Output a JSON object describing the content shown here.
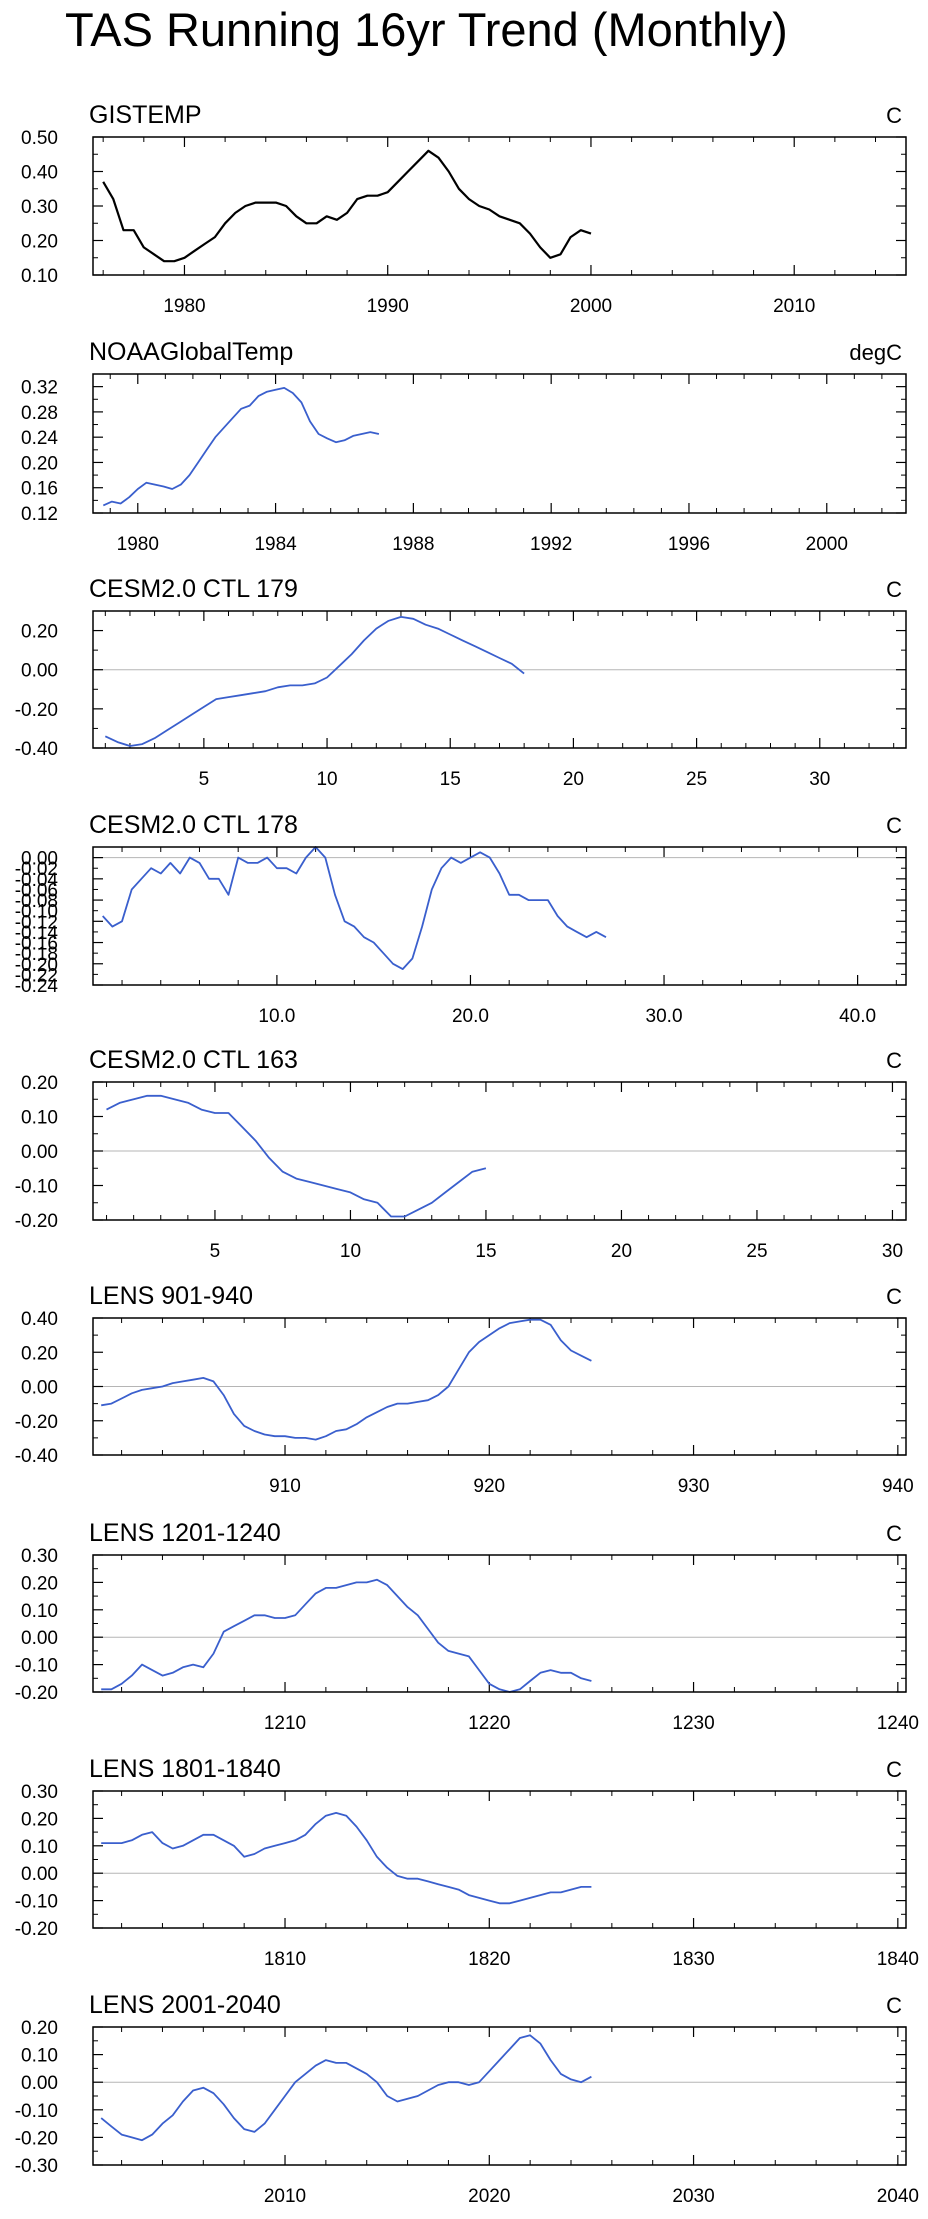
{
  "title": "TAS Running 16yr Trend (Monthly)",
  "chart_data": [
    {
      "type": "line",
      "title": "GISTEMP",
      "units": "C",
      "color": "#000000",
      "xlim": [
        1975.5,
        2015.5
      ],
      "xticks": [
        1980,
        1990,
        2000,
        2010
      ],
      "xtick_labels": [
        "1980",
        "1990",
        "2000",
        "2010"
      ],
      "ylim": [
        0.1,
        0.5
      ],
      "yticks": [
        0.1,
        0.2,
        0.3,
        0.4,
        0.5
      ],
      "ytick_labels": [
        "0.10",
        "0.20",
        "0.30",
        "0.40",
        "0.50"
      ],
      "zero_line": false,
      "x": [
        1976.0,
        1976.5,
        1977.0,
        1977.5,
        1978.0,
        1978.5,
        1979.0,
        1979.5,
        1980.0,
        1980.5,
        1981.0,
        1981.5,
        1982.0,
        1982.5,
        1983.0,
        1983.5,
        1984.0,
        1984.5,
        1985.0,
        1985.5,
        1986.0,
        1986.5,
        1987.0,
        1987.5,
        1988.0,
        1988.5,
        1989.0,
        1989.5,
        1990.0,
        1990.5,
        1991.0,
        1991.5,
        1992.0,
        1992.5,
        1993.0,
        1993.5,
        1994.0,
        1994.5,
        1995.0,
        1995.5,
        1996.0,
        1996.5,
        1997.0,
        1997.5,
        1998.0,
        1998.5,
        1999.0,
        1999.5,
        2000.0
      ],
      "values": [
        0.37,
        0.32,
        0.23,
        0.23,
        0.18,
        0.16,
        0.14,
        0.14,
        0.15,
        0.17,
        0.19,
        0.21,
        0.25,
        0.28,
        0.3,
        0.31,
        0.31,
        0.31,
        0.3,
        0.27,
        0.25,
        0.25,
        0.27,
        0.26,
        0.28,
        0.32,
        0.33,
        0.33,
        0.34,
        0.37,
        0.4,
        0.43,
        0.46,
        0.44,
        0.4,
        0.35,
        0.32,
        0.3,
        0.29,
        0.27,
        0.26,
        0.25,
        0.22,
        0.18,
        0.15,
        0.16,
        0.21,
        0.23,
        0.22
      ]
    },
    {
      "type": "line",
      "title": "NOAAGlobalTemp",
      "units": "degC",
      "color": "#3a5fcd",
      "xlim": [
        1978.7,
        2002.3
      ],
      "xticks": [
        1980,
        1984,
        1988,
        1992,
        1996,
        2000
      ],
      "xtick_labels": [
        "1980",
        "1984",
        "1988",
        "1992",
        "1996",
        "2000"
      ],
      "ylim": [
        0.12,
        0.34
      ],
      "yticks": [
        0.12,
        0.16,
        0.2,
        0.24,
        0.28,
        0.32
      ],
      "ytick_labels": [
        "0.12",
        "0.16",
        "0.20",
        "0.24",
        "0.28",
        "0.32"
      ],
      "zero_line": false,
      "x": [
        1979.0,
        1979.25,
        1979.5,
        1979.75,
        1980.0,
        1980.25,
        1980.5,
        1980.75,
        1981.0,
        1981.25,
        1981.5,
        1981.75,
        1982.0,
        1982.25,
        1982.5,
        1982.75,
        1983.0,
        1983.25,
        1983.5,
        1983.75,
        1984.0,
        1984.25,
        1984.5,
        1984.75,
        1985.0,
        1985.25,
        1985.5,
        1985.75,
        1986.0,
        1986.25,
        1986.5,
        1986.75,
        1987.0
      ],
      "values": [
        0.132,
        0.138,
        0.135,
        0.145,
        0.158,
        0.168,
        0.165,
        0.162,
        0.158,
        0.165,
        0.18,
        0.2,
        0.22,
        0.24,
        0.255,
        0.27,
        0.285,
        0.29,
        0.305,
        0.312,
        0.315,
        0.318,
        0.31,
        0.295,
        0.265,
        0.245,
        0.238,
        0.232,
        0.235,
        0.242,
        0.245,
        0.248,
        0.245
      ]
    },
    {
      "type": "line",
      "title": "CESM2.0 CTL 179",
      "units": "C",
      "color": "#3a5fcd",
      "xlim": [
        0.5,
        33.5
      ],
      "xticks": [
        5,
        10,
        15,
        20,
        25,
        30
      ],
      "xtick_labels": [
        "5",
        "10",
        "15",
        "20",
        "25",
        "30"
      ],
      "ylim": [
        -0.4,
        0.3
      ],
      "yticks": [
        -0.4,
        -0.2,
        0.0,
        0.2
      ],
      "ytick_labels": [
        "-0.40",
        "-0.20",
        "0.00",
        "0.20"
      ],
      "zero_line": true,
      "x": [
        1.0,
        1.5,
        2.0,
        2.5,
        3.0,
        3.5,
        4.0,
        4.5,
        5.0,
        5.5,
        6.0,
        6.5,
        7.0,
        7.5,
        8.0,
        8.5,
        9.0,
        9.5,
        10.0,
        10.5,
        11.0,
        11.5,
        12.0,
        12.5,
        13.0,
        13.5,
        14.0,
        14.5,
        15.0,
        15.5,
        16.0,
        16.5,
        17.0,
        17.5,
        18.0
      ],
      "values": [
        -0.34,
        -0.37,
        -0.39,
        -0.38,
        -0.35,
        -0.31,
        -0.27,
        -0.23,
        -0.19,
        -0.15,
        -0.14,
        -0.13,
        -0.12,
        -0.11,
        -0.09,
        -0.08,
        -0.08,
        -0.07,
        -0.04,
        0.02,
        0.08,
        0.15,
        0.21,
        0.25,
        0.27,
        0.26,
        0.23,
        0.21,
        0.18,
        0.15,
        0.12,
        0.09,
        0.06,
        0.03,
        -0.02
      ]
    },
    {
      "type": "line",
      "title": "CESM2.0 CTL 178",
      "units": "C",
      "color": "#3a5fcd",
      "xlim": [
        0.5,
        42.5
      ],
      "xticks": [
        10,
        20,
        30,
        40
      ],
      "xtick_labels": [
        "10.0",
        "20.0",
        "30.0",
        "40.0"
      ],
      "ylim": [
        -0.24,
        0.02
      ],
      "yticks": [
        -0.24,
        -0.2,
        -0.16,
        -0.12,
        -0.08,
        -0.04,
        0.0
      ],
      "ytick_labels": [
        "-0.24",
        "-0.20",
        "-0.16",
        "-0.12",
        "-0.08",
        "-0.04",
        "0.00"
      ],
      "minor_yticks": [
        -0.22,
        -0.18,
        -0.14,
        -0.1,
        -0.06,
        -0.02
      ],
      "minor_ytick_labels": [
        "-0.22",
        "-0.18",
        "-0.14",
        "-0.10",
        "-0.06",
        "-0.02"
      ],
      "zero_line": true,
      "x": [
        1.0,
        1.5,
        2.0,
        2.5,
        3.0,
        3.5,
        4.0,
        4.5,
        5.0,
        5.5,
        6.0,
        6.5,
        7.0,
        7.5,
        8.0,
        8.5,
        9.0,
        9.5,
        10.0,
        10.5,
        11.0,
        11.5,
        12.0,
        12.5,
        13.0,
        13.5,
        14.0,
        14.5,
        15.0,
        15.5,
        16.0,
        16.5,
        17.0,
        17.5,
        18.0,
        18.5,
        19.0,
        19.5,
        20.0,
        20.5,
        21.0,
        21.5,
        22.0,
        22.5,
        23.0,
        23.5,
        24.0,
        24.5,
        25.0,
        25.5,
        26.0,
        26.5,
        27.0
      ],
      "values": [
        -0.11,
        -0.13,
        -0.12,
        -0.06,
        -0.04,
        -0.02,
        -0.03,
        -0.01,
        -0.03,
        0.0,
        -0.01,
        -0.04,
        -0.04,
        -0.07,
        0.0,
        -0.01,
        -0.01,
        0.0,
        -0.02,
        -0.02,
        -0.03,
        0.0,
        0.02,
        0.0,
        -0.07,
        -0.12,
        -0.13,
        -0.15,
        -0.16,
        -0.18,
        -0.2,
        -0.21,
        -0.19,
        -0.13,
        -0.06,
        -0.02,
        0.0,
        -0.01,
        0.0,
        0.01,
        0.0,
        -0.03,
        -0.07,
        -0.07,
        -0.08,
        -0.08,
        -0.08,
        -0.11,
        -0.13,
        -0.14,
        -0.15,
        -0.14,
        -0.15
      ]
    },
    {
      "type": "line",
      "title": "CESM2.0 CTL 163",
      "units": "C",
      "color": "#3a5fcd",
      "xlim": [
        0.5,
        30.5
      ],
      "xticks": [
        5,
        10,
        15,
        20,
        25,
        30
      ],
      "xtick_labels": [
        "5",
        "10",
        "15",
        "20",
        "25",
        "30"
      ],
      "ylim": [
        -0.2,
        0.2
      ],
      "yticks": [
        -0.2,
        -0.1,
        0.0,
        0.1,
        0.2
      ],
      "ytick_labels": [
        "-0.20",
        "-0.10",
        "0.00",
        "0.10",
        "0.20"
      ],
      "zero_line": true,
      "x": [
        1.0,
        1.5,
        2.0,
        2.5,
        3.0,
        3.5,
        4.0,
        4.5,
        5.0,
        5.5,
        6.0,
        6.5,
        7.0,
        7.5,
        8.0,
        8.5,
        9.0,
        9.5,
        10.0,
        10.5,
        11.0,
        11.5,
        12.0,
        12.5,
        13.0,
        13.5,
        14.0,
        14.5,
        15.0
      ],
      "values": [
        0.12,
        0.14,
        0.15,
        0.16,
        0.16,
        0.15,
        0.14,
        0.12,
        0.11,
        0.11,
        0.07,
        0.03,
        -0.02,
        -0.06,
        -0.08,
        -0.09,
        -0.1,
        -0.11,
        -0.12,
        -0.14,
        -0.15,
        -0.19,
        -0.19,
        -0.17,
        -0.15,
        -0.12,
        -0.09,
        -0.06,
        -0.05
      ]
    },
    {
      "type": "line",
      "title": "LENS 901-940",
      "units": "C",
      "color": "#3a5fcd",
      "xlim": [
        900.6,
        940.4
      ],
      "xticks": [
        910,
        920,
        930,
        940
      ],
      "xtick_labels": [
        "910",
        "920",
        "930",
        "940"
      ],
      "ylim": [
        -0.4,
        0.4
      ],
      "yticks": [
        -0.4,
        -0.2,
        0.0,
        0.2,
        0.4
      ],
      "ytick_labels": [
        "-0.40",
        "-0.20",
        "0.00",
        "0.20",
        "0.40"
      ],
      "zero_line": true,
      "x": [
        901.0,
        901.5,
        902.0,
        902.5,
        903.0,
        903.5,
        904.0,
        904.5,
        905.0,
        905.5,
        906.0,
        906.5,
        907.0,
        907.5,
        908.0,
        908.5,
        909.0,
        909.5,
        910.0,
        910.5,
        911.0,
        911.5,
        912.0,
        912.5,
        913.0,
        913.5,
        914.0,
        914.5,
        915.0,
        915.5,
        916.0,
        916.5,
        917.0,
        917.5,
        918.0,
        918.5,
        919.0,
        919.5,
        920.0,
        920.5,
        921.0,
        921.5,
        922.0,
        922.5,
        923.0,
        923.5,
        924.0,
        924.5,
        925.0
      ],
      "values": [
        -0.11,
        -0.1,
        -0.07,
        -0.04,
        -0.02,
        -0.01,
        0.0,
        0.02,
        0.03,
        0.04,
        0.05,
        0.03,
        -0.05,
        -0.16,
        -0.23,
        -0.26,
        -0.28,
        -0.29,
        -0.29,
        -0.3,
        -0.3,
        -0.31,
        -0.29,
        -0.26,
        -0.25,
        -0.22,
        -0.18,
        -0.15,
        -0.12,
        -0.1,
        -0.1,
        -0.09,
        -0.08,
        -0.05,
        0.0,
        0.1,
        0.2,
        0.26,
        0.3,
        0.34,
        0.37,
        0.38,
        0.39,
        0.39,
        0.36,
        0.27,
        0.21,
        0.18,
        0.15
      ]
    },
    {
      "type": "line",
      "title": "LENS 1201-1240",
      "units": "C",
      "color": "#3a5fcd",
      "xlim": [
        1200.6,
        1240.4
      ],
      "xticks": [
        1210,
        1220,
        1230,
        1240
      ],
      "xtick_labels": [
        "1210",
        "1220",
        "1230",
        "1240"
      ],
      "ylim": [
        -0.2,
        0.3
      ],
      "yticks": [
        -0.2,
        -0.1,
        0.0,
        0.1,
        0.2,
        0.3
      ],
      "ytick_labels": [
        "-0.20",
        "-0.10",
        "0.00",
        "0.10",
        "0.20",
        "0.30"
      ],
      "zero_line": true,
      "x": [
        1201.0,
        1201.5,
        1202.0,
        1202.5,
        1203.0,
        1203.5,
        1204.0,
        1204.5,
        1205.0,
        1205.5,
        1206.0,
        1206.5,
        1207.0,
        1207.5,
        1208.0,
        1208.5,
        1209.0,
        1209.5,
        1210.0,
        1210.5,
        1211.0,
        1211.5,
        1212.0,
        1212.5,
        1213.0,
        1213.5,
        1214.0,
        1214.5,
        1215.0,
        1215.5,
        1216.0,
        1216.5,
        1217.0,
        1217.5,
        1218.0,
        1218.5,
        1219.0,
        1219.5,
        1220.0,
        1220.5,
        1221.0,
        1221.5,
        1222.0,
        1222.5,
        1223.0,
        1223.5,
        1224.0,
        1224.5,
        1225.0
      ],
      "values": [
        -0.19,
        -0.19,
        -0.17,
        -0.14,
        -0.1,
        -0.12,
        -0.14,
        -0.13,
        -0.11,
        -0.1,
        -0.11,
        -0.06,
        0.02,
        0.04,
        0.06,
        0.08,
        0.08,
        0.07,
        0.07,
        0.08,
        0.12,
        0.16,
        0.18,
        0.18,
        0.19,
        0.2,
        0.2,
        0.21,
        0.19,
        0.15,
        0.11,
        0.08,
        0.03,
        -0.02,
        -0.05,
        -0.06,
        -0.07,
        -0.12,
        -0.17,
        -0.19,
        -0.2,
        -0.19,
        -0.16,
        -0.13,
        -0.12,
        -0.13,
        -0.13,
        -0.15,
        -0.16
      ]
    },
    {
      "type": "line",
      "title": "LENS 1801-1840",
      "units": "C",
      "color": "#3a5fcd",
      "xlim": [
        1800.6,
        1840.4
      ],
      "xticks": [
        1810,
        1820,
        1830,
        1840
      ],
      "xtick_labels": [
        "1810",
        "1820",
        "1830",
        "1840"
      ],
      "ylim": [
        -0.2,
        0.3
      ],
      "yticks": [
        -0.2,
        -0.1,
        0.0,
        0.1,
        0.2,
        0.3
      ],
      "ytick_labels": [
        "-0.20",
        "-0.10",
        "0.00",
        "0.10",
        "0.20",
        "0.30"
      ],
      "zero_line": true,
      "x": [
        1801.0,
        1801.5,
        1802.0,
        1802.5,
        1803.0,
        1803.5,
        1804.0,
        1804.5,
        1805.0,
        1805.5,
        1806.0,
        1806.5,
        1807.0,
        1807.5,
        1808.0,
        1808.5,
        1809.0,
        1809.5,
        1810.0,
        1810.5,
        1811.0,
        1811.5,
        1812.0,
        1812.5,
        1813.0,
        1813.5,
        1814.0,
        1814.5,
        1815.0,
        1815.5,
        1816.0,
        1816.5,
        1817.0,
        1817.5,
        1818.0,
        1818.5,
        1819.0,
        1819.5,
        1820.0,
        1820.5,
        1821.0,
        1821.5,
        1822.0,
        1822.5,
        1823.0,
        1823.5,
        1824.0,
        1824.5,
        1825.0
      ],
      "values": [
        0.11,
        0.11,
        0.11,
        0.12,
        0.14,
        0.15,
        0.11,
        0.09,
        0.1,
        0.12,
        0.14,
        0.14,
        0.12,
        0.1,
        0.06,
        0.07,
        0.09,
        0.1,
        0.11,
        0.12,
        0.14,
        0.18,
        0.21,
        0.22,
        0.21,
        0.17,
        0.12,
        0.06,
        0.02,
        -0.01,
        -0.02,
        -0.02,
        -0.03,
        -0.04,
        -0.05,
        -0.06,
        -0.08,
        -0.09,
        -0.1,
        -0.11,
        -0.11,
        -0.1,
        -0.09,
        -0.08,
        -0.07,
        -0.07,
        -0.06,
        -0.05,
        -0.05
      ]
    },
    {
      "type": "line",
      "title": "LENS 2001-2040",
      "units": "C",
      "color": "#3a5fcd",
      "xlim": [
        2000.6,
        2040.4
      ],
      "xticks": [
        2010,
        2020,
        2030,
        2040
      ],
      "xtick_labels": [
        "2010",
        "2020",
        "2030",
        "2040"
      ],
      "ylim": [
        -0.3,
        0.2
      ],
      "yticks": [
        -0.3,
        -0.2,
        -0.1,
        0.0,
        0.1,
        0.2
      ],
      "ytick_labels": [
        "-0.30",
        "-0.20",
        "-0.10",
        "0.00",
        "0.10",
        "0.20"
      ],
      "zero_line": true,
      "x": [
        2001.0,
        2001.5,
        2002.0,
        2002.5,
        2003.0,
        2003.5,
        2004.0,
        2004.5,
        2005.0,
        2005.5,
        2006.0,
        2006.5,
        2007.0,
        2007.5,
        2008.0,
        2008.5,
        2009.0,
        2009.5,
        2010.0,
        2010.5,
        2011.0,
        2011.5,
        2012.0,
        2012.5,
        2013.0,
        2013.5,
        2014.0,
        2014.5,
        2015.0,
        2015.5,
        2016.0,
        2016.5,
        2017.0,
        2017.5,
        2018.0,
        2018.5,
        2019.0,
        2019.5,
        2020.0,
        2020.5,
        2021.0,
        2021.5,
        2022.0,
        2022.5,
        2023.0,
        2023.5,
        2024.0,
        2024.5,
        2025.0
      ],
      "values": [
        -0.13,
        -0.16,
        -0.19,
        -0.2,
        -0.21,
        -0.19,
        -0.15,
        -0.12,
        -0.07,
        -0.03,
        -0.02,
        -0.04,
        -0.08,
        -0.13,
        -0.17,
        -0.18,
        -0.15,
        -0.1,
        -0.05,
        0.0,
        0.03,
        0.06,
        0.08,
        0.07,
        0.07,
        0.05,
        0.03,
        0.0,
        -0.05,
        -0.07,
        -0.06,
        -0.05,
        -0.03,
        -0.01,
        0.0,
        0.0,
        -0.01,
        0.0,
        0.04,
        0.08,
        0.12,
        0.16,
        0.17,
        0.14,
        0.08,
        0.03,
        0.01,
        0.0,
        0.02
      ]
    }
  ]
}
